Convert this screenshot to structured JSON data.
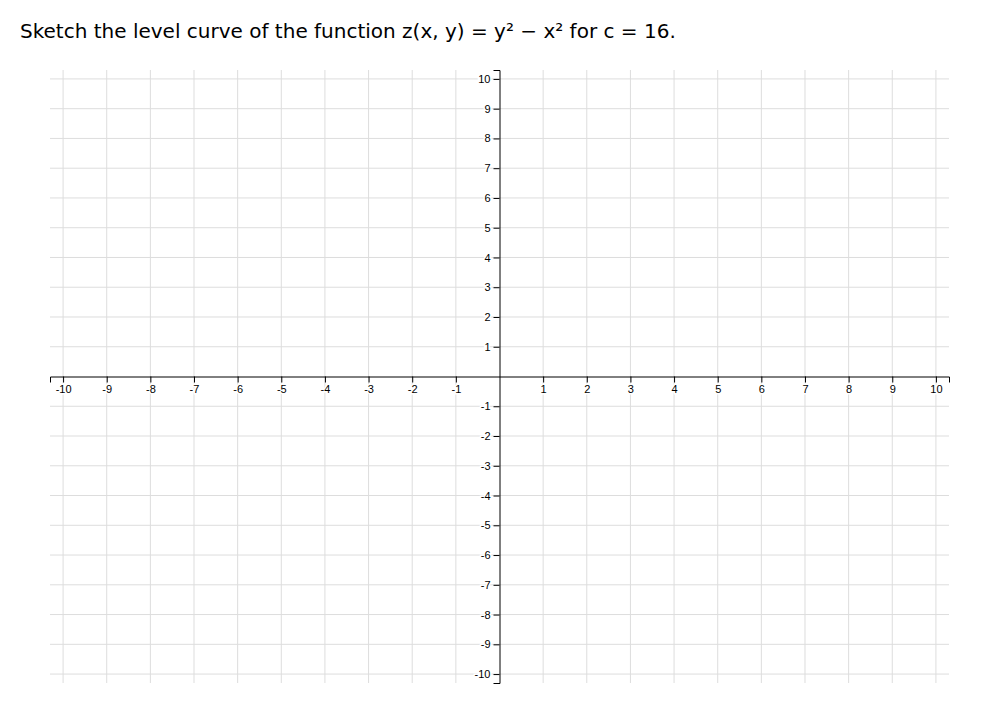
{
  "chart_data": {
    "type": "axes",
    "title": "Sketch the level curve of the function z(x, y) = y² − x² for c = 16.",
    "xlim": [
      -10.3,
      10.3
    ],
    "ylim": [
      -10.3,
      10.3
    ],
    "xticks": [
      -10,
      -9,
      -8,
      -7,
      -6,
      -5,
      -4,
      -3,
      -2,
      -1,
      1,
      2,
      3,
      4,
      5,
      6,
      7,
      8,
      9,
      10
    ],
    "yticks": [
      -10,
      -9,
      -8,
      -7,
      -6,
      -5,
      -4,
      -3,
      -2,
      -1,
      1,
      2,
      3,
      4,
      5,
      6,
      7,
      8,
      9,
      10
    ],
    "grid": true
  }
}
